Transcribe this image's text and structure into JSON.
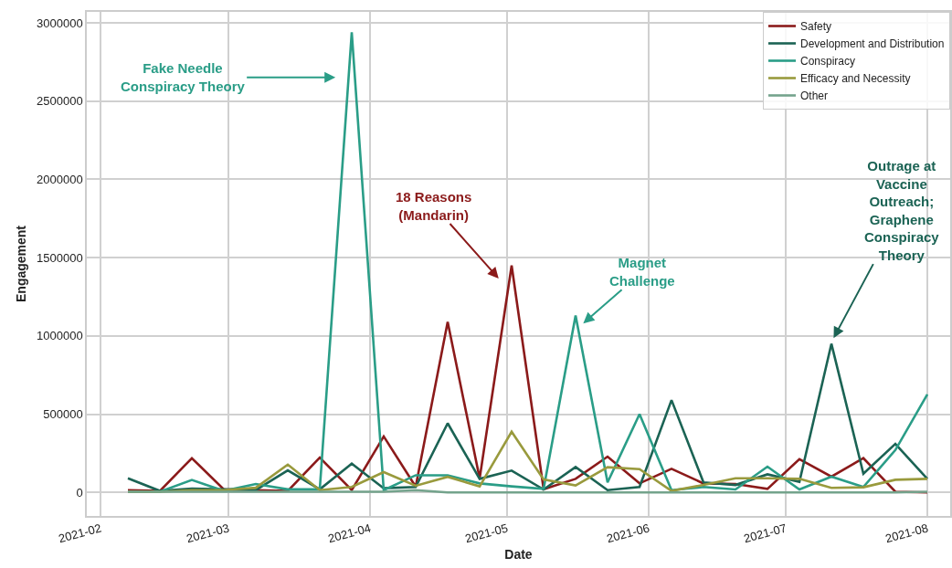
{
  "chart_data": {
    "type": "line",
    "xlabel": "Date",
    "ylabel": "Engagement",
    "x": [
      "2021-02-07",
      "2021-02-14",
      "2021-02-21",
      "2021-02-28",
      "2021-03-07",
      "2021-03-14",
      "2021-03-21",
      "2021-03-28",
      "2021-04-04",
      "2021-04-11",
      "2021-04-18",
      "2021-04-25",
      "2021-05-02",
      "2021-05-09",
      "2021-05-16",
      "2021-05-23",
      "2021-05-30",
      "2021-06-06",
      "2021-06-13",
      "2021-06-20",
      "2021-06-27",
      "2021-07-04",
      "2021-07-11",
      "2021-07-18",
      "2021-07-25",
      "2021-08-01"
    ],
    "series": [
      {
        "name": "Safety",
        "color": "#8b1a1a",
        "values": [
          15000,
          10000,
          219000,
          20000,
          15000,
          10000,
          223000,
          15000,
          358000,
          37000,
          1090000,
          90000,
          1450000,
          20000,
          87000,
          229000,
          58000,
          151000,
          58000,
          54000,
          23000,
          213000,
          101000,
          219000,
          5000,
          0
        ]
      },
      {
        "name": "Development and Distribution",
        "color": "#1b6354",
        "values": [
          91000,
          10000,
          25000,
          20000,
          15000,
          141000,
          20000,
          184000,
          27000,
          35000,
          442000,
          87000,
          140000,
          19000,
          163000,
          15000,
          35000,
          590000,
          64000,
          48000,
          116000,
          68000,
          950000,
          120000,
          310000,
          87000
        ]
      },
      {
        "name": "Conspiracy",
        "color": "#2a9d87",
        "values": [
          5000,
          5000,
          80000,
          10000,
          54000,
          20000,
          20000,
          2940000,
          15000,
          110000,
          110000,
          58000,
          39000,
          23000,
          1130000,
          64000,
          500000,
          15000,
          35000,
          19000,
          165000,
          19000,
          101000,
          35000,
          271000,
          626000
        ]
      },
      {
        "name": "Efficacy and Necessity",
        "color": "#999a3d",
        "values": [
          5000,
          5000,
          15000,
          15000,
          30000,
          178000,
          15000,
          35000,
          130000,
          43000,
          100000,
          39000,
          388000,
          83000,
          45000,
          161000,
          149000,
          10000,
          48000,
          91000,
          91000,
          87000,
          29000,
          33000,
          81000,
          87000
        ]
      },
      {
        "name": "Other",
        "color": "#74a38c",
        "values": [
          5000,
          5000,
          5000,
          5000,
          5000,
          5000,
          5000,
          5000,
          5000,
          15000,
          0,
          0,
          0,
          0,
          0,
          0,
          0,
          0,
          0,
          0,
          0,
          0,
          0,
          0,
          0,
          5000
        ]
      }
    ],
    "xlim": [
      "2021-01-29",
      "2021-08-06"
    ],
    "xticks": [
      {
        "value": "2021-02-01",
        "label": "2021-02"
      },
      {
        "value": "2021-03-01",
        "label": "2021-03"
      },
      {
        "value": "2021-04-01",
        "label": "2021-04"
      },
      {
        "value": "2021-05-01",
        "label": "2021-05"
      },
      {
        "value": "2021-06-01",
        "label": "2021-06"
      },
      {
        "value": "2021-07-01",
        "label": "2021-07"
      },
      {
        "value": "2021-08-01",
        "label": "2021-08"
      }
    ],
    "ylim": [
      -150000,
      3070000
    ],
    "yticks": [
      0,
      500000,
      1000000,
      1500000,
      2000000,
      2500000,
      3000000
    ],
    "grid": true,
    "legend": "top right",
    "marker": "none",
    "line_style": "solid",
    "annotations": [
      "Fake Needle\nConspiracy Theory",
      "18 Reasons\n(Mandarin)",
      "Magnet\nChallenge",
      "Outrage at\nVaccine\nOutreach;\nGraphene\nConspiracy\nTheory"
    ]
  }
}
